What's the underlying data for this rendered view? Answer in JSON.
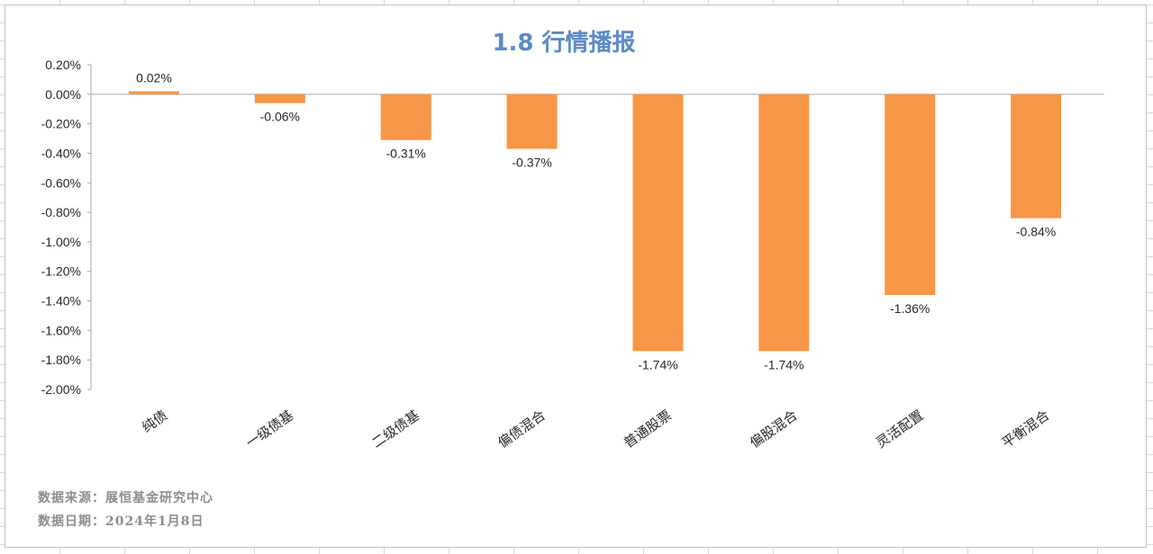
{
  "chart_data": {
    "type": "bar",
    "title": "1.8 行情播报",
    "categories": [
      "纯债",
      "一级债基",
      "二级债基",
      "偏债混合",
      "普通股票",
      "偏股混合",
      "灵活配置",
      "平衡混合"
    ],
    "values": [
      0.02,
      -0.06,
      -0.31,
      -0.37,
      -1.74,
      -1.74,
      -1.36,
      -0.84
    ],
    "data_labels": [
      "0.02%",
      "-0.06%",
      "-0.31%",
      "-0.37%",
      "-1.74%",
      "-1.74%",
      "-1.36%",
      "-0.84%"
    ],
    "ylim": [
      -2.0,
      0.2
    ],
    "yticks": [
      0.2,
      0.0,
      -0.2,
      -0.4,
      -0.6,
      -0.8,
      -1.0,
      -1.2,
      -1.4,
      -1.6,
      -1.8,
      -2.0
    ],
    "ytick_labels": [
      "0.20%",
      "0.00%",
      "-0.20%",
      "-0.40%",
      "-0.60%",
      "-0.80%",
      "-1.00%",
      "-1.20%",
      "-1.40%",
      "-1.60%",
      "-1.80%",
      "-2.00%"
    ],
    "bar_color": "#f79646",
    "title_color": "#5b8ac6",
    "grid": false,
    "legend": "none"
  },
  "notes": {
    "source": "数据来源：展恒基金研究中心",
    "date": "数据日期：2024年1月8日"
  }
}
